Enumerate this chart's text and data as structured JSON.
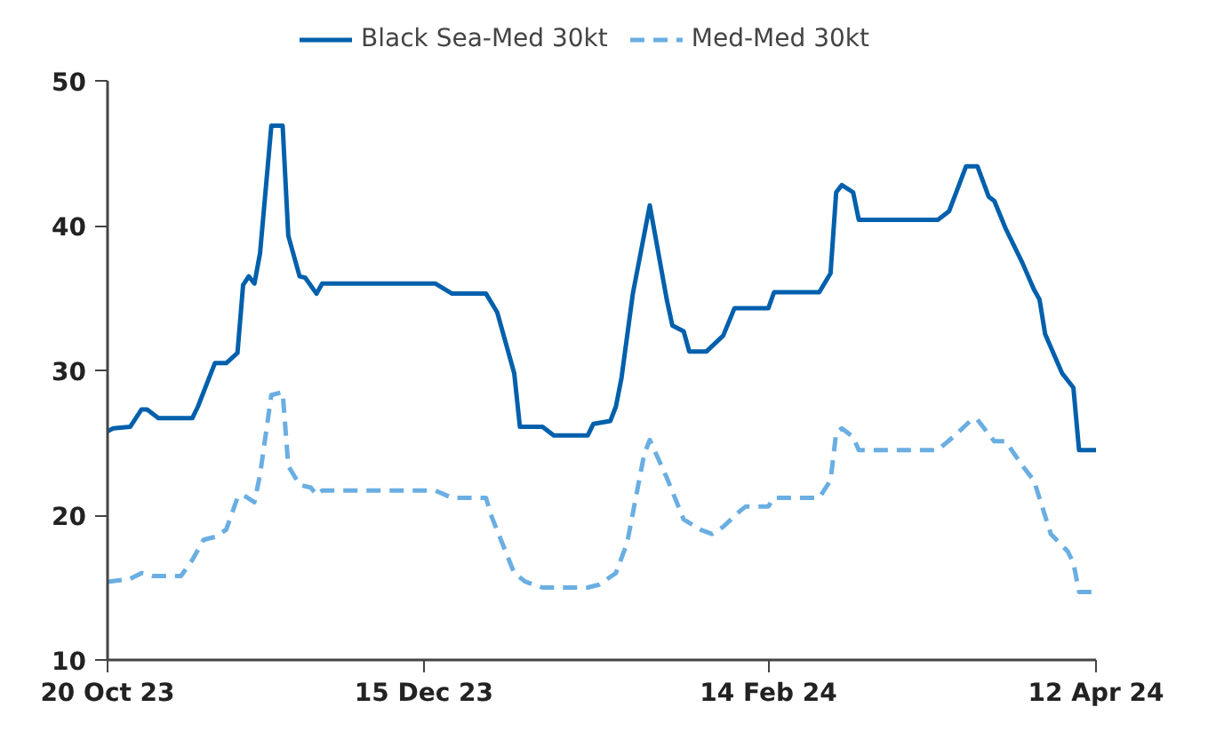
{
  "chart_data": {
    "type": "line",
    "xlim": [
      "2023-10-20",
      "2024-04-12"
    ],
    "xticks": [
      {
        "value": "2023-10-20",
        "label": "20 Oct 23"
      },
      {
        "value": "2023-12-15",
        "label": "15 Dec 23"
      },
      {
        "value": "2024-02-14",
        "label": "14 Feb 24"
      },
      {
        "value": "2024-04-12",
        "label": "12 Apr 24"
      }
    ],
    "ylim": [
      10,
      50
    ],
    "yticks": [
      10,
      20,
      30,
      40,
      50
    ],
    "grid": false,
    "legend": "top",
    "marker": "none",
    "series": [
      {
        "name": "Black Sea-Med 30kt",
        "color": "#0060ac",
        "line_style": "solid",
        "x": [
          "2023-10-20",
          "2023-10-21",
          "2023-10-24",
          "2023-10-26",
          "2023-10-27",
          "2023-10-29",
          "2023-11-04",
          "2023-11-05",
          "2023-11-07",
          "2023-11-08",
          "2023-11-10",
          "2023-11-12",
          "2023-11-13",
          "2023-11-14",
          "2023-11-15",
          "2023-11-16",
          "2023-11-18",
          "2023-11-20",
          "2023-11-21",
          "2023-11-23",
          "2023-11-24",
          "2023-11-26",
          "2023-11-27",
          "2023-12-17",
          "2023-12-20",
          "2023-12-26",
          "2023-12-28",
          "2023-12-31",
          "2024-01-01",
          "2024-01-05",
          "2024-01-07",
          "2024-01-13",
          "2024-01-14",
          "2024-01-17",
          "2024-01-18",
          "2024-01-19",
          "2024-01-21",
          "2024-01-24",
          "2024-01-27",
          "2024-01-28",
          "2024-01-30",
          "2024-01-31",
          "2024-02-03",
          "2024-02-06",
          "2024-02-08",
          "2024-02-14",
          "2024-02-15",
          "2024-02-23",
          "2024-02-25",
          "2024-02-26",
          "2024-02-27",
          "2024-02-29",
          "2024-03-01",
          "2024-03-15",
          "2024-03-17",
          "2024-03-20",
          "2024-03-22",
          "2024-03-24",
          "2024-03-25",
          "2024-03-27",
          "2024-03-30",
          "2024-04-01",
          "2024-04-02",
          "2024-04-03",
          "2024-04-06",
          "2024-04-08",
          "2024-04-09",
          "2024-04-12"
        ],
        "values": [
          25.8,
          26.0,
          26.1,
          27.3,
          27.3,
          26.7,
          26.7,
          27.5,
          29.5,
          30.5,
          30.5,
          31.2,
          35.9,
          36.5,
          36.0,
          38.1,
          46.9,
          46.9,
          39.3,
          36.5,
          36.4,
          35.3,
          36.0,
          36.0,
          35.3,
          35.3,
          34.0,
          29.8,
          26.1,
          26.1,
          25.5,
          25.5,
          26.3,
          26.5,
          27.5,
          29.5,
          35.3,
          41.4,
          34.9,
          33.1,
          32.7,
          31.3,
          31.3,
          32.4,
          34.3,
          34.3,
          35.4,
          35.4,
          36.7,
          42.3,
          42.8,
          42.3,
          40.4,
          40.4,
          41.0,
          44.1,
          44.1,
          42.0,
          41.7,
          39.8,
          37.4,
          35.6,
          34.9,
          32.5,
          29.8,
          28.8,
          24.5,
          24.5
        ]
      },
      {
        "name": "Med-Med 30kt",
        "color": "#6aaee2",
        "line_style": "dashed",
        "x": [
          "2023-10-20",
          "2023-10-24",
          "2023-10-26",
          "2023-10-28",
          "2023-11-02",
          "2023-11-04",
          "2023-11-06",
          "2023-11-08",
          "2023-11-10",
          "2023-11-12",
          "2023-11-13",
          "2023-11-15",
          "2023-11-16",
          "2023-11-18",
          "2023-11-20",
          "2023-11-21",
          "2023-11-23",
          "2023-11-25",
          "2023-11-26",
          "2023-11-27",
          "2023-12-17",
          "2023-12-20",
          "2023-12-26",
          "2023-12-27",
          "2023-12-31",
          "2024-01-02",
          "2024-01-05",
          "2024-01-13",
          "2024-01-15",
          "2024-01-18",
          "2024-01-20",
          "2024-01-23",
          "2024-01-24",
          "2024-01-27",
          "2024-01-30",
          "2024-02-02",
          "2024-02-04",
          "2024-02-06",
          "2024-02-09",
          "2024-02-10",
          "2024-02-14",
          "2024-02-15",
          "2024-02-23",
          "2024-02-25",
          "2024-02-26",
          "2024-02-27",
          "2024-02-29",
          "2024-03-01",
          "2024-03-15",
          "2024-03-18",
          "2024-03-21",
          "2024-03-22",
          "2024-03-24",
          "2024-03-25",
          "2024-03-27",
          "2024-03-30",
          "2024-04-01",
          "2024-04-04",
          "2024-04-07",
          "2024-04-08",
          "2024-04-09",
          "2024-04-12"
        ],
        "values": [
          15.4,
          15.6,
          16.0,
          15.8,
          15.8,
          16.9,
          18.3,
          18.5,
          19.0,
          21.2,
          21.4,
          20.9,
          22.8,
          28.3,
          28.5,
          23.4,
          22.1,
          21.9,
          21.4,
          21.7,
          21.7,
          21.2,
          21.2,
          19.9,
          16.0,
          15.4,
          15.0,
          15.0,
          15.2,
          16.0,
          18.1,
          24.2,
          25.2,
          22.6,
          19.7,
          19.0,
          18.7,
          19.2,
          20.3,
          20.6,
          20.6,
          21.2,
          21.2,
          22.4,
          25.7,
          26.0,
          25.4,
          24.5,
          24.5,
          25.5,
          26.6,
          26.6,
          25.6,
          25.1,
          25.1,
          23.4,
          22.4,
          18.7,
          17.5,
          16.7,
          14.7,
          14.7
        ]
      }
    ]
  }
}
